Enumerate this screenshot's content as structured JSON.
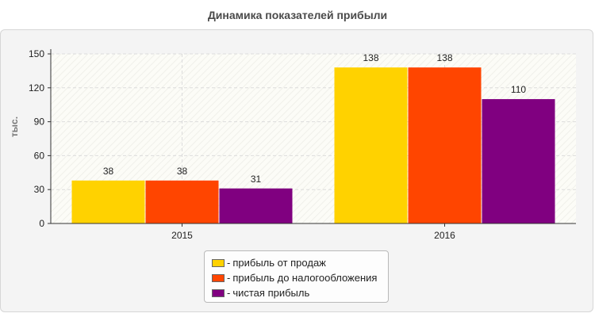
{
  "chart_data": {
    "type": "bar",
    "title": "Динамика показателей прибыли",
    "ylabel": "тыс.",
    "xlabel": "",
    "categories": [
      "2015",
      "2016"
    ],
    "series": [
      {
        "name": "прибыль от продаж",
        "values": [
          38,
          138
        ],
        "color": "#ffd200"
      },
      {
        "name": "прибыль до налогообложения",
        "values": [
          38,
          138
        ],
        "color": "#ff4500"
      },
      {
        "name": "чистая прибыль",
        "values": [
          31,
          110
        ],
        "color": "#800080"
      }
    ],
    "yticks": [
      "0",
      "30",
      "60",
      "90",
      "120",
      "150"
    ],
    "ylim": [
      0,
      150
    ],
    "grid": true,
    "legend_position": "bottom"
  }
}
